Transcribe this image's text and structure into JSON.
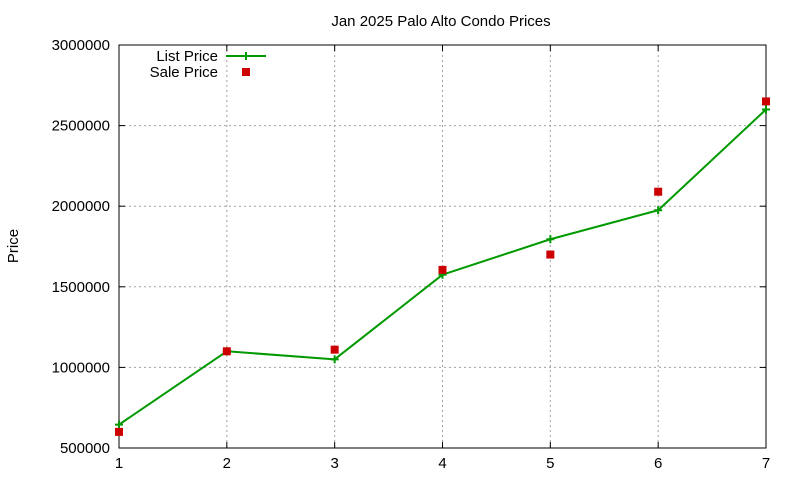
{
  "chart_data": {
    "type": "line",
    "title": "Jan 2025 Palo Alto Condo Prices",
    "xlabel": "",
    "ylabel": "Price",
    "x": [
      1,
      2,
      3,
      4,
      5,
      6,
      7
    ],
    "xlim": [
      1,
      7
    ],
    "ylim": [
      500000,
      3000000
    ],
    "xticks": [
      "1",
      "2",
      "3",
      "4",
      "5",
      "6",
      "7"
    ],
    "yticks": [
      "500000",
      "1000000",
      "1500000",
      "2000000",
      "2500000",
      "3000000"
    ],
    "grid": true,
    "legend_position": "top-left",
    "series": [
      {
        "name": "List Price",
        "style": "line-with-plus-markers",
        "color": "#009900",
        "values": [
          645000,
          1100000,
          1050000,
          1575000,
          1795000,
          1975000,
          2600000
        ]
      },
      {
        "name": "Sale Price",
        "style": "square-markers",
        "color": "#cc0000",
        "values": [
          600000,
          1100000,
          1110000,
          1605000,
          1700000,
          2090000,
          2650000
        ]
      }
    ]
  }
}
